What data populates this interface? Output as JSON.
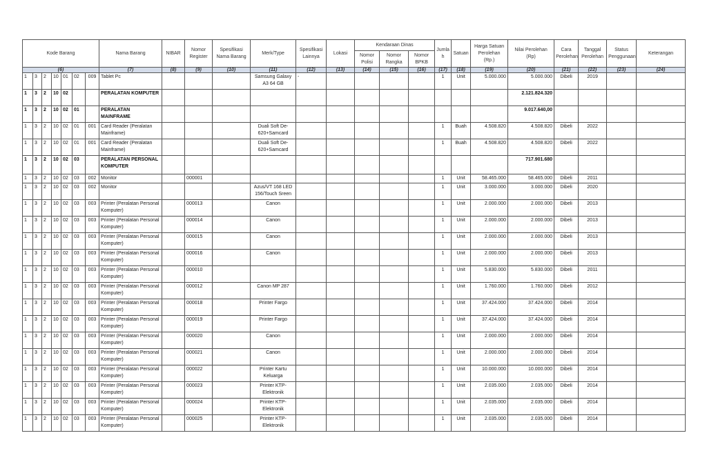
{
  "headers": {
    "kode_barang": "Kode Barang",
    "nama_barang": "Nama Barang",
    "nibar": "NIBAR",
    "nomor_register": "Nomor Register",
    "spesifikasi_nama_barang": "Spesifikasi Nama Barang",
    "merk_type": "Merk/Type",
    "spesifikasi_lainnya": "Spesifikasi Lainnya",
    "lokasi": "Lokasi",
    "kendaraan_dinas": "Kendaraan Dinas",
    "nomor_polisi": "Nomor Polisi",
    "nomor_rangka": "Nomor Rangka",
    "nomor_bpkb": "Nomor BPKB",
    "jumlah": "Jumla h",
    "satuan": "Satuan",
    "harga_satuan": "Harga Satuan Perolehan (Rp.)",
    "nilai_perolehan": "Nilai Perolehan (Rp)",
    "cara_perolehan": "Cara Perolehan",
    "tanggal_perolehan": "Tanggal Perolehan",
    "status_penggunaan": "Status Penggunaan",
    "keterangan": "Keterangan"
  },
  "column_numbers": [
    "(6)",
    "(7)",
    "(8)",
    "(9)",
    "(10)",
    "(11)",
    "(12)",
    "(13)",
    "(14)",
    "(15)",
    "(16)",
    "(17)",
    "(18)",
    "(19)",
    "(20)",
    "(21)",
    "(22)",
    "(23)",
    "(24)"
  ],
  "rows": [
    {
      "type": "item",
      "kode": [
        "1",
        "3",
        "2",
        "10",
        "01",
        "02",
        "009"
      ],
      "nama": "Tablet Pc",
      "nibar": "",
      "register": "",
      "spesifikasi": "",
      "merk": "Samsung Galaxy A3 64 GB",
      "spesifikasi_lainnya": "-",
      "lokasi": "",
      "polisi": "",
      "rangka": "",
      "bpkb": "",
      "jumlah": "1",
      "satuan": "Unit",
      "harga": "5.000.000",
      "nilai": "5.000.000",
      "cara": "Dibeli",
      "tanggal": "2019",
      "status": "",
      "keterangan": ""
    },
    {
      "type": "group",
      "kode": [
        "1",
        "3",
        "2",
        "10",
        "02",
        "",
        ""
      ],
      "nama": "PERALATAN KOMPUTER",
      "nilai": "2.121.824.320"
    },
    {
      "type": "group",
      "kode": [
        "1",
        "3",
        "2",
        "10",
        "02",
        "01",
        ""
      ],
      "nama": "PERALATAN MAINFRAME",
      "nilai": "9.017.640,00"
    },
    {
      "type": "item",
      "kode": [
        "1",
        "3",
        "2",
        "10",
        "02",
        "01",
        "001"
      ],
      "nama": "Card Reader (Peralatan Mainframe)",
      "register": "",
      "merk": "Duali Soft De-620+Samcard",
      "jumlah": "1",
      "satuan": "Buah",
      "harga": "4.508.820",
      "nilai": "4.508.820",
      "cara": "Dibeli",
      "tanggal": "2022"
    },
    {
      "type": "item",
      "kode": [
        "1",
        "3",
        "2",
        "10",
        "02",
        "01",
        "001"
      ],
      "nama": "Card Reader (Peralatan Mainframe)",
      "register": "",
      "merk": "Duali Soft De-620+Samcard",
      "jumlah": "1",
      "satuan": "Buah",
      "harga": "4.508.820",
      "nilai": "4.508.820",
      "cara": "Dibeli",
      "tanggal": "2022"
    },
    {
      "type": "group",
      "kode": [
        "1",
        "3",
        "2",
        "10",
        "02",
        "03",
        ""
      ],
      "nama": "PERALATAN PERSONAL KOMPUTER",
      "nilai": "717.901.680"
    },
    {
      "type": "item",
      "kode": [
        "1",
        "3",
        "2",
        "10",
        "02",
        "03",
        "002"
      ],
      "nama": "Monitor",
      "register": "000001",
      "merk": "",
      "jumlah": "1",
      "satuan": "Unit",
      "harga": "58.465.000",
      "nilai": "58.465.000",
      "cara": "Dibeli",
      "tanggal": "2011"
    },
    {
      "type": "item",
      "kode": [
        "1",
        "3",
        "2",
        "10",
        "02",
        "03",
        "002"
      ],
      "nama": "Monitor",
      "register": "",
      "merk": "Azus/VT 168 LED 156/Touch Sreen",
      "jumlah": "1",
      "satuan": "Unit",
      "harga": "3.000.000",
      "nilai": "3.000.000",
      "cara": "Dibeli",
      "tanggal": "2020"
    },
    {
      "type": "item",
      "kode": [
        "1",
        "3",
        "2",
        "10",
        "02",
        "03",
        "003"
      ],
      "nama": "Printer (Peralatan Personal Komputer)",
      "register": "000013",
      "merk": "Canon",
      "jumlah": "1",
      "satuan": "Unit",
      "harga": "2.000.000",
      "nilai": "2.000.000",
      "cara": "Dibeli",
      "tanggal": "2013"
    },
    {
      "type": "item",
      "kode": [
        "1",
        "3",
        "2",
        "10",
        "02",
        "03",
        "003"
      ],
      "nama": "Printer (Peralatan Personal Komputer)",
      "register": "000014",
      "merk": "Canon",
      "jumlah": "1",
      "satuan": "Unit",
      "harga": "2.000.000",
      "nilai": "2.000.000",
      "cara": "Dibeli",
      "tanggal": "2013"
    },
    {
      "type": "item",
      "kode": [
        "1",
        "3",
        "2",
        "10",
        "02",
        "03",
        "003"
      ],
      "nama": "Printer (Peralatan Personal Komputer)",
      "register": "000015",
      "merk": "Canon",
      "jumlah": "1",
      "satuan": "Unit",
      "harga": "2.000.000",
      "nilai": "2.000.000",
      "cara": "Dibeli",
      "tanggal": "2013"
    },
    {
      "type": "item",
      "kode": [
        "1",
        "3",
        "2",
        "10",
        "02",
        "03",
        "003"
      ],
      "nama": "Printer (Peralatan Personal Komputer)",
      "register": "000016",
      "merk": "Canon",
      "jumlah": "1",
      "satuan": "Unit",
      "harga": "2.000.000",
      "nilai": "2.000.000",
      "cara": "Dibeli",
      "tanggal": "2013"
    },
    {
      "type": "item",
      "kode": [
        "1",
        "3",
        "2",
        "10",
        "02",
        "03",
        "003"
      ],
      "nama": "Printer (Peralatan Personal Komputer)",
      "register": "000010",
      "merk": "",
      "jumlah": "1",
      "satuan": "Unit",
      "harga": "5.830.000",
      "nilai": "5.830.000",
      "cara": "Dibeli",
      "tanggal": "2011"
    },
    {
      "type": "item",
      "kode": [
        "1",
        "3",
        "2",
        "10",
        "02",
        "03",
        "003"
      ],
      "nama": "Printer (Peralatan Personal Komputer)",
      "register": "000012",
      "merk": "Canon MP 287",
      "jumlah": "1",
      "satuan": "Unit",
      "harga": "1.760.000",
      "nilai": "1.760.000",
      "cara": "Dibeli",
      "tanggal": "2012"
    },
    {
      "type": "item",
      "kode": [
        "1",
        "3",
        "2",
        "10",
        "02",
        "03",
        "003"
      ],
      "nama": "Printer (Peralatan Personal Komputer)",
      "register": "000018",
      "merk": "Printer Fargo",
      "jumlah": "1",
      "satuan": "Unit",
      "harga": "37.424.000",
      "nilai": "37.424.000",
      "cara": "Dibeli",
      "tanggal": "2014"
    },
    {
      "type": "item",
      "kode": [
        "1",
        "3",
        "2",
        "10",
        "02",
        "03",
        "003"
      ],
      "nama": "Printer (Peralatan Personal Komputer)",
      "register": "000019",
      "merk": "Printer Fargo",
      "jumlah": "1",
      "satuan": "Unit",
      "harga": "37.424.000",
      "nilai": "37.424.000",
      "cara": "Dibeli",
      "tanggal": "2014"
    },
    {
      "type": "item",
      "kode": [
        "1",
        "3",
        "2",
        "10",
        "02",
        "03",
        "003"
      ],
      "nama": "Printer (Peralatan Personal Komputer)",
      "register": "000020",
      "merk": "Canon",
      "jumlah": "1",
      "satuan": "Unit",
      "harga": "2.000.000",
      "nilai": "2.000.000",
      "cara": "Dibeli",
      "tanggal": "2014"
    },
    {
      "type": "item",
      "kode": [
        "1",
        "3",
        "2",
        "10",
        "02",
        "03",
        "003"
      ],
      "nama": "Printer (Peralatan Personal Komputer)",
      "register": "000021",
      "merk": "Canon",
      "jumlah": "1",
      "satuan": "Unit",
      "harga": "2.000.000",
      "nilai": "2.000.000",
      "cara": "Dibeli",
      "tanggal": "2014"
    },
    {
      "type": "item",
      "kode": [
        "1",
        "3",
        "2",
        "10",
        "02",
        "03",
        "003"
      ],
      "nama": "Printer (Peralatan Personal Komputer)",
      "register": "000022",
      "merk": "Printer Kartu Keluarga",
      "jumlah": "1",
      "satuan": "Unit",
      "harga": "10.000.000",
      "nilai": "10.000.000",
      "cara": "Dibeli",
      "tanggal": "2014"
    },
    {
      "type": "item",
      "kode": [
        "1",
        "3",
        "2",
        "10",
        "02",
        "03",
        "003"
      ],
      "nama": "Printer (Peralatan Personal Komputer)",
      "register": "000023",
      "merk": "Printer KTP-Elektronik",
      "jumlah": "1",
      "satuan": "Unit",
      "harga": "2.035.000",
      "nilai": "2.035.000",
      "cara": "Dibeli",
      "tanggal": "2014"
    },
    {
      "type": "item",
      "kode": [
        "1",
        "3",
        "2",
        "10",
        "02",
        "03",
        "003"
      ],
      "nama": "Printer (Peralatan Personal Komputer)",
      "register": "000024",
      "merk": "Printer KTP-Elektronik",
      "jumlah": "1",
      "satuan": "Unit",
      "harga": "2.035.000",
      "nilai": "2.035.000",
      "cara": "Dibeli",
      "tanggal": "2014"
    },
    {
      "type": "item",
      "kode": [
        "1",
        "3",
        "2",
        "10",
        "02",
        "03",
        "003"
      ],
      "nama": "Printer (Peralatan Personal Komputer)",
      "register": "000025",
      "merk": "Printer KTP-Elektronik",
      "jumlah": "1",
      "satuan": "Unit",
      "harga": "2.035.000",
      "nilai": "2.035.000",
      "cara": "Dibeli",
      "tanggal": "2014"
    }
  ]
}
